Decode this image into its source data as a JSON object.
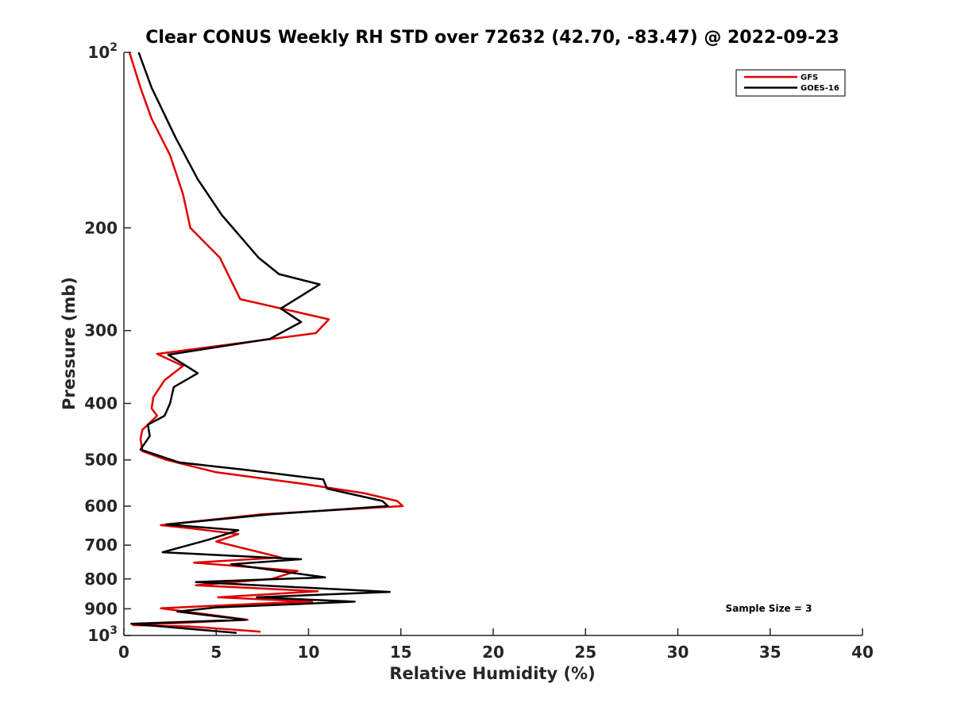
{
  "chart_data": {
    "type": "line",
    "title": "Clear CONUS Weekly RH STD over 72632 (42.70, -83.47) @ 2022-09-23",
    "xlabel": "Relative Humidity (%)",
    "ylabel": "Pressure (mb)",
    "xlim": [
      0,
      40
    ],
    "ylim": [
      100,
      1000
    ],
    "y_scale": "log",
    "y_reversed": true,
    "grid": false,
    "legend_placement": "top-right",
    "x_ticks": [
      0,
      5,
      10,
      15,
      20,
      25,
      30,
      35,
      40
    ],
    "x_tick_labels": [
      "0",
      "5",
      "10",
      "15",
      "20",
      "25",
      "30",
      "35",
      "40"
    ],
    "y_ticks": [
      100,
      200,
      300,
      400,
      500,
      600,
      700,
      800,
      900,
      1000
    ],
    "y_tick_labels": [
      "10^2",
      "200",
      "300",
      "400",
      "500",
      "600",
      "700",
      "800",
      "900",
      "10^3"
    ],
    "annotation": "Sample Size = 3",
    "series": [
      {
        "name": "GFS",
        "color": "#e00000",
        "points": [
          [
            0.3,
            100
          ],
          [
            0.9,
            115
          ],
          [
            1.5,
            130
          ],
          [
            2.5,
            150
          ],
          [
            3.2,
            175
          ],
          [
            3.6,
            200
          ],
          [
            5.2,
            225
          ],
          [
            6.3,
            265
          ],
          [
            11.1,
            287
          ],
          [
            10.4,
            303
          ],
          [
            1.8,
            329
          ],
          [
            3.2,
            345
          ],
          [
            2.2,
            365
          ],
          [
            1.6,
            390
          ],
          [
            1.5,
            408
          ],
          [
            1.8,
            420
          ],
          [
            1.0,
            444
          ],
          [
            0.9,
            460
          ],
          [
            1.0,
            483
          ],
          [
            2.3,
            500
          ],
          [
            5.0,
            525
          ],
          [
            9.8,
            550
          ],
          [
            13.0,
            570
          ],
          [
            14.8,
            588
          ],
          [
            15.1,
            600
          ],
          [
            7.4,
            620
          ],
          [
            2.0,
            647
          ],
          [
            3.6,
            655
          ],
          [
            6.2,
            670
          ],
          [
            5.0,
            690
          ],
          [
            8.5,
            735
          ],
          [
            3.8,
            750
          ],
          [
            9.4,
            775
          ],
          [
            8.0,
            800
          ],
          [
            3.9,
            820
          ],
          [
            10.5,
            840
          ],
          [
            5.1,
            860
          ],
          [
            10.2,
            875
          ],
          [
            8.0,
            880
          ],
          [
            2.0,
            898
          ],
          [
            6.7,
            940
          ],
          [
            0.5,
            960
          ],
          [
            3.5,
            965
          ],
          [
            7.4,
            985
          ]
        ]
      },
      {
        "name": "GOES-16",
        "color": "#000000",
        "points": [
          [
            0.8,
            100
          ],
          [
            1.5,
            115
          ],
          [
            2.8,
            140
          ],
          [
            4.0,
            165
          ],
          [
            5.3,
            190
          ],
          [
            7.3,
            225
          ],
          [
            8.4,
            240
          ],
          [
            10.6,
            250
          ],
          [
            8.5,
            275
          ],
          [
            9.6,
            290
          ],
          [
            7.9,
            310
          ],
          [
            2.4,
            330
          ],
          [
            4.0,
            355
          ],
          [
            2.7,
            375
          ],
          [
            2.5,
            400
          ],
          [
            2.2,
            420
          ],
          [
            1.3,
            435
          ],
          [
            1.4,
            455
          ],
          [
            0.9,
            480
          ],
          [
            3.0,
            505
          ],
          [
            6.6,
            520
          ],
          [
            10.8,
            540
          ],
          [
            11.0,
            560
          ],
          [
            14.0,
            588
          ],
          [
            14.3,
            600
          ],
          [
            7.9,
            620
          ],
          [
            2.3,
            645
          ],
          [
            6.2,
            660
          ],
          [
            4.6,
            685
          ],
          [
            2.1,
            720
          ],
          [
            9.6,
            740
          ],
          [
            5.8,
            755
          ],
          [
            10.9,
            795
          ],
          [
            3.9,
            810
          ],
          [
            14.4,
            842
          ],
          [
            7.2,
            860
          ],
          [
            12.5,
            875
          ],
          [
            5.0,
            895
          ],
          [
            2.9,
            910
          ],
          [
            6.6,
            940
          ],
          [
            0.4,
            955
          ],
          [
            6.1,
            990
          ]
        ]
      }
    ]
  }
}
